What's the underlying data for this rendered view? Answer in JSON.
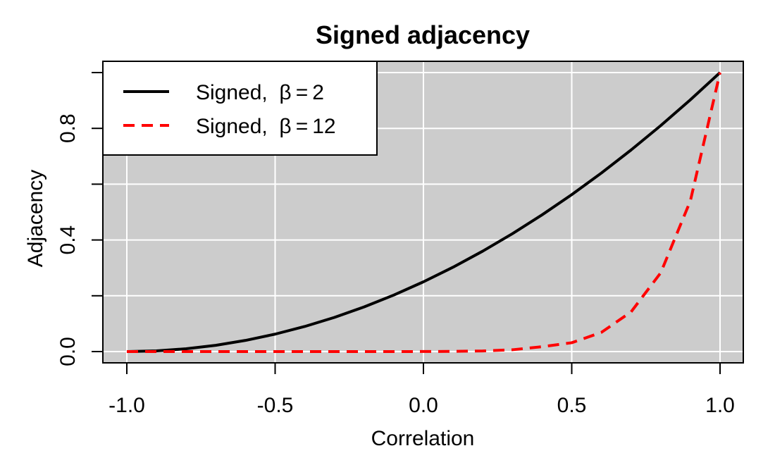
{
  "chart_data": {
    "type": "line",
    "title": "Signed adjacency",
    "xlabel": "Correlation",
    "ylabel": "Adjacency",
    "xlim": [
      -1.0,
      1.0
    ],
    "ylim": [
      0.0,
      1.0
    ],
    "x_ticks": [
      -1.0,
      -0.5,
      0.0,
      0.5,
      1.0
    ],
    "x_tick_labels": [
      "-1.0",
      "-0.5",
      "0.0",
      "0.5",
      "1.0"
    ],
    "y_ticks": [
      0.0,
      0.2,
      0.4,
      0.6,
      0.8,
      1.0
    ],
    "y_tick_labels": [
      "0.0",
      "",
      "0.4",
      "",
      "0.8",
      ""
    ],
    "grid": true,
    "background": "#cccccc",
    "legend_position": "top-left",
    "x": [
      -1.0,
      -0.9,
      -0.8,
      -0.7,
      -0.6,
      -0.5,
      -0.4,
      -0.3,
      -0.2,
      -0.1,
      0.0,
      0.1,
      0.2,
      0.3,
      0.4,
      0.5,
      0.6,
      0.7,
      0.8,
      0.9,
      1.0
    ],
    "series": [
      {
        "name": "Signed, β = 2",
        "color": "#000000",
        "dash": "solid",
        "values": [
          0.0,
          0.0025,
          0.01,
          0.0225,
          0.04,
          0.0625,
          0.09,
          0.1225,
          0.16,
          0.2025,
          0.25,
          0.3025,
          0.36,
          0.4225,
          0.49,
          0.5625,
          0.64,
          0.7225,
          0.81,
          0.9025,
          1.0
        ]
      },
      {
        "name": "Signed, β = 12",
        "color": "#ff0000",
        "dash": "dashed",
        "values": [
          0.0,
          0.0,
          0.0,
          0.0,
          0.0,
          0.0,
          0.0,
          0.0,
          0.0,
          0.0,
          0.0002,
          0.0007,
          0.0022,
          0.0065,
          0.0174,
          0.0317,
          0.0687,
          0.1422,
          0.2824,
          0.5404,
          1.0
        ]
      }
    ],
    "legend": [
      {
        "prefix": "Signed,",
        "symbol": "β",
        "eq": "=",
        "num": "2"
      },
      {
        "prefix": "Signed,",
        "symbol": "β",
        "eq": "=",
        "num": "12"
      }
    ]
  }
}
